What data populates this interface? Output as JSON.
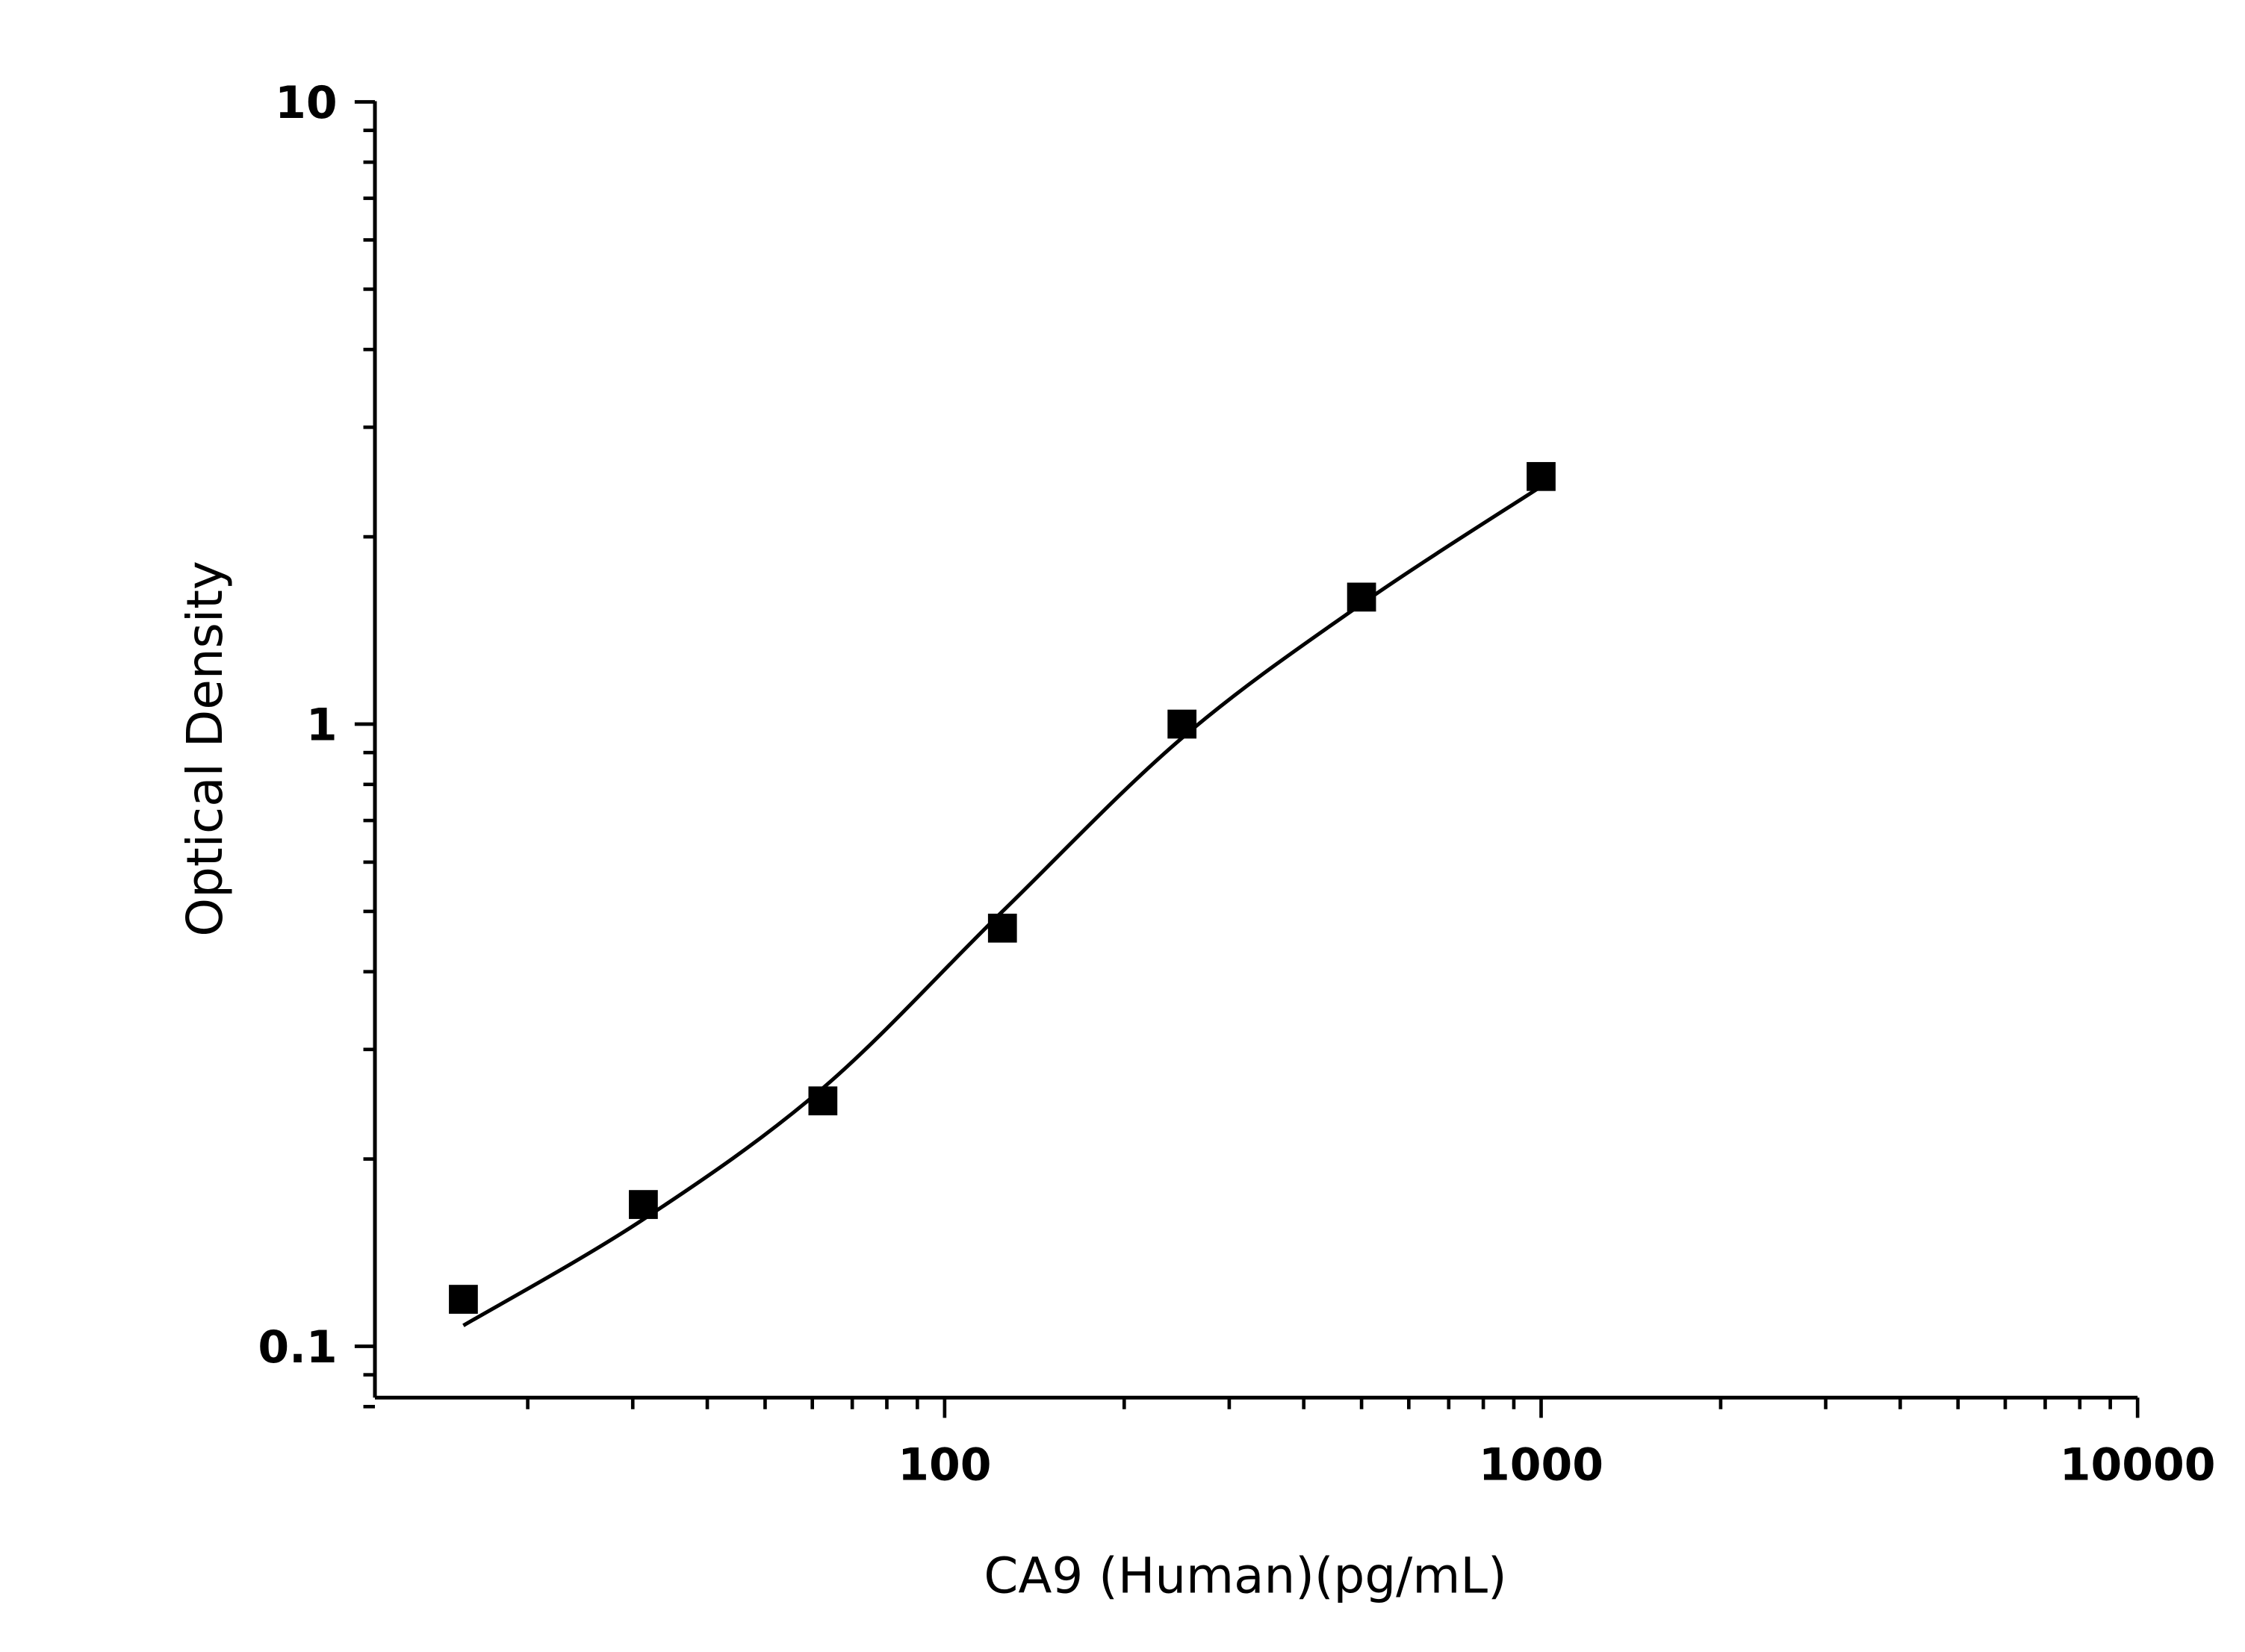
{
  "chart_data": {
    "type": "scatter",
    "xlabel": "CA9 (Human)(pg/mL)",
    "ylabel": "Optical Density",
    "xscale": "log",
    "yscale": "log",
    "xlim": [
      11.1,
      10000
    ],
    "ylim": [
      0.078,
      10
    ],
    "x_ticks": [
      {
        "value": 100,
        "label": "100"
      },
      {
        "value": 1000,
        "label": "1000"
      },
      {
        "value": 10000,
        "label": "10000"
      }
    ],
    "y_ticks": [
      {
        "value": 0.1,
        "label": "0.1"
      },
      {
        "value": 1,
        "label": "1"
      },
      {
        "value": 10,
        "label": "10"
      }
    ],
    "grid": false,
    "series": [
      {
        "marker": "square",
        "color": "#000000",
        "x": [
          15.6,
          31.25,
          62.5,
          125,
          250,
          500,
          1000
        ],
        "y": [
          0.119,
          0.169,
          0.248,
          0.47,
          1.0,
          1.6,
          2.5
        ]
      }
    ],
    "fit_curve": {
      "color": "#000000",
      "x": [
        15.6,
        31.25,
        62.5,
        125,
        250,
        500,
        1000
      ],
      "y": [
        0.108,
        0.16,
        0.26,
        0.5,
        0.95,
        1.56,
        2.41
      ]
    }
  }
}
